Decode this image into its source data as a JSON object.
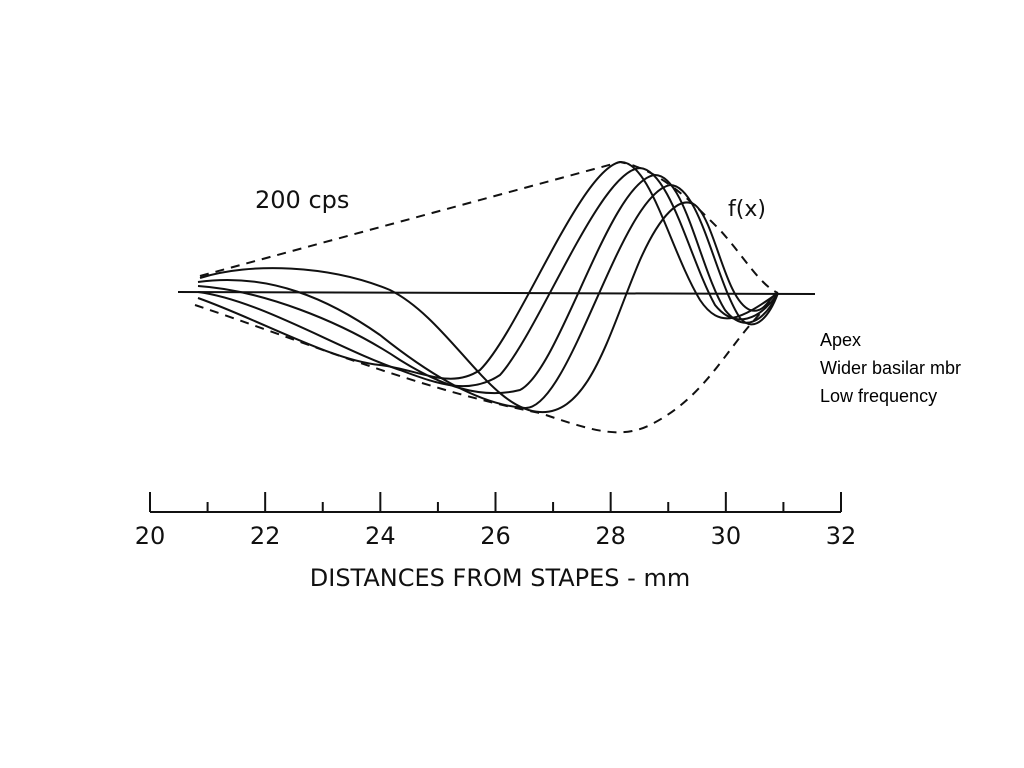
{
  "chart_data": {
    "type": "line",
    "annotations": [
      "200 cps",
      "f(x)"
    ],
    "xlabel": "DISTANCES FROM STAPES - mm",
    "xlim": [
      20,
      32
    ],
    "xticks": [
      20,
      22,
      24,
      26,
      28,
      30,
      32
    ],
    "minor_xticks": [
      21,
      23,
      25,
      27,
      29,
      31
    ],
    "notes": [
      "Apex",
      "Wider basilar mbr",
      "Low frequency"
    ]
  }
}
